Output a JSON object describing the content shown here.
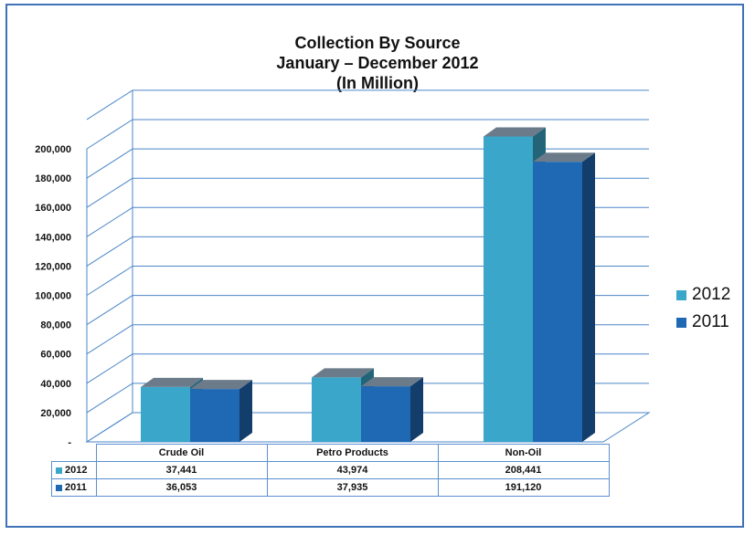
{
  "chart_data": {
    "type": "bar",
    "title": [
      "Collection By Source",
      "January – December 2012",
      "(In Million)"
    ],
    "categories": [
      "Crude Oil",
      "Petro Products",
      "Non-Oil"
    ],
    "series": [
      {
        "name": "2012",
        "values": [
          37441,
          43974,
          208441
        ],
        "color": "#3aa6c9",
        "labels": [
          "37,441",
          "43,974",
          "208,441"
        ]
      },
      {
        "name": "2011",
        "values": [
          36053,
          37935,
          191120
        ],
        "color": "#1f68b3",
        "labels": [
          "36,053",
          "37,935",
          "191,120"
        ]
      }
    ],
    "yticks": [
      "-",
      "20,000",
      "40,000",
      "60,000",
      "80,000",
      "100,000",
      "120,000",
      "140,000",
      "160,000",
      "180,000",
      "200,000"
    ],
    "ylim": [
      0,
      220000
    ],
    "grid": true,
    "legend_position": "right"
  }
}
